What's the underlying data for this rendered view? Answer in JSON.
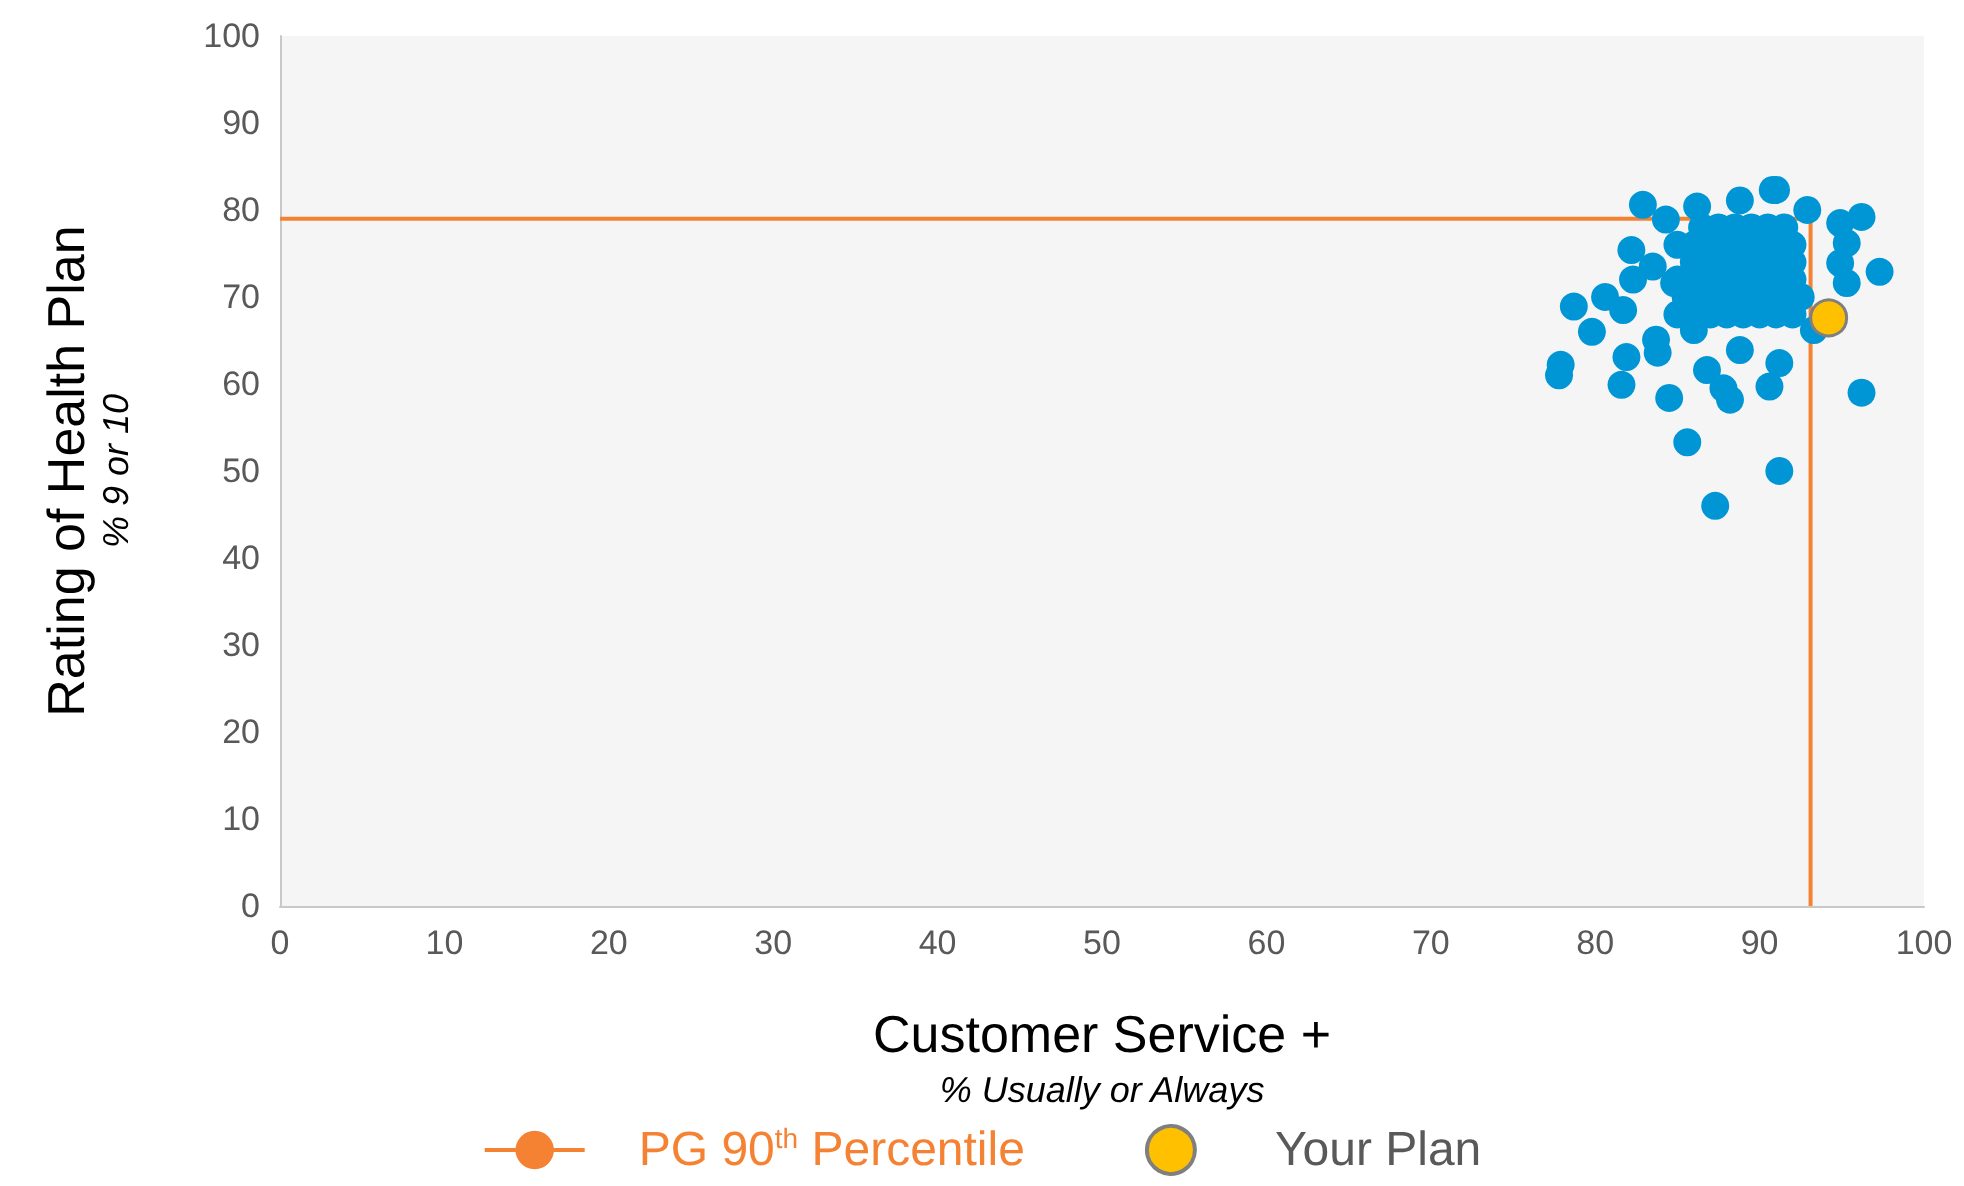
{
  "chart_data": {
    "type": "scatter",
    "xlabel": "Customer Service +\n% Usually or Always",
    "ylabel": "Rating of Health Plan\n% 9 or 10",
    "xlim": [
      0,
      100
    ],
    "ylim": [
      0,
      100
    ],
    "xticks": [
      0,
      10,
      20,
      30,
      40,
      50,
      60,
      70,
      80,
      90,
      100
    ],
    "yticks": [
      0,
      10,
      20,
      30,
      40,
      50,
      60,
      70,
      80,
      90,
      100
    ],
    "grid": false,
    "legend": "bottom",
    "marker": "circle",
    "series": [
      {
        "color": "#0096d6",
        "x": [
          77.8,
          77.9,
          78.7,
          79.8,
          80.6,
          81.9,
          81.6,
          83.7,
          83.8,
          84.5,
          85.6,
          87.3,
          91.2,
          96.2,
          97.3,
          96.2,
          82.9,
          82.2,
          82.3,
          95.3,
          90.8,
          91.0,
          88.2,
          90.6,
          91.2,
          86.8,
          87.8,
          81.7,
          84.3,
          86.2,
          88.8,
          92.9,
          94.9,
          95.3,
          94.9,
          93.3,
          83.5,
          84.8,
          86.0,
          88.8,
          85,
          86,
          87,
          88,
          89,
          90,
          91,
          92,
          85,
          86,
          87,
          88,
          89,
          90,
          91,
          92,
          85,
          86,
          87,
          88,
          89,
          90,
          91,
          92,
          85.5,
          86.5,
          87.5,
          88.5,
          89.5,
          90.5,
          91.5,
          92.5,
          86,
          87,
          88,
          89,
          90,
          91,
          92,
          86.5,
          87.5,
          88.5,
          89.5,
          90.5,
          91.5
        ],
        "values": [
          61.0,
          62.2,
          68.9,
          66.0,
          70.0,
          63.1,
          59.9,
          65.1,
          63.6,
          58.4,
          53.3,
          46.0,
          50.0,
          59.0,
          72.9,
          79.2,
          80.6,
          75.4,
          72.0,
          71.6,
          82.3,
          82.3,
          58.2,
          59.7,
          62.4,
          61.6,
          59.5,
          68.5,
          78.9,
          80.4,
          81.1,
          80.0,
          78.5,
          76.2,
          73.9,
          66.2,
          73.5,
          71.6,
          66.2,
          63.9,
          68,
          68,
          68,
          68,
          68,
          68,
          68,
          68,
          72,
          72,
          72,
          72,
          72,
          72,
          72,
          72,
          76,
          76,
          76,
          76,
          76,
          76,
          76,
          76,
          70,
          70,
          70,
          70,
          70,
          70,
          70,
          70,
          74,
          74,
          74,
          74,
          74,
          74,
          74,
          78,
          78,
          78,
          78,
          78,
          78
        ]
      },
      {
        "name": "PG 90$^{th}$ Percentile",
        "type": "line",
        "color": "#f58233",
        "x": [
          0,
          93.1,
          93.1
        ],
        "values": [
          79,
          79,
          0
        ],
        "marker": "none"
      },
      {
        "name": "Your Plan",
        "color": "#ffc000",
        "x": [
          94.2
        ],
        "values": [
          67.6
        ]
      }
    ]
  }
}
